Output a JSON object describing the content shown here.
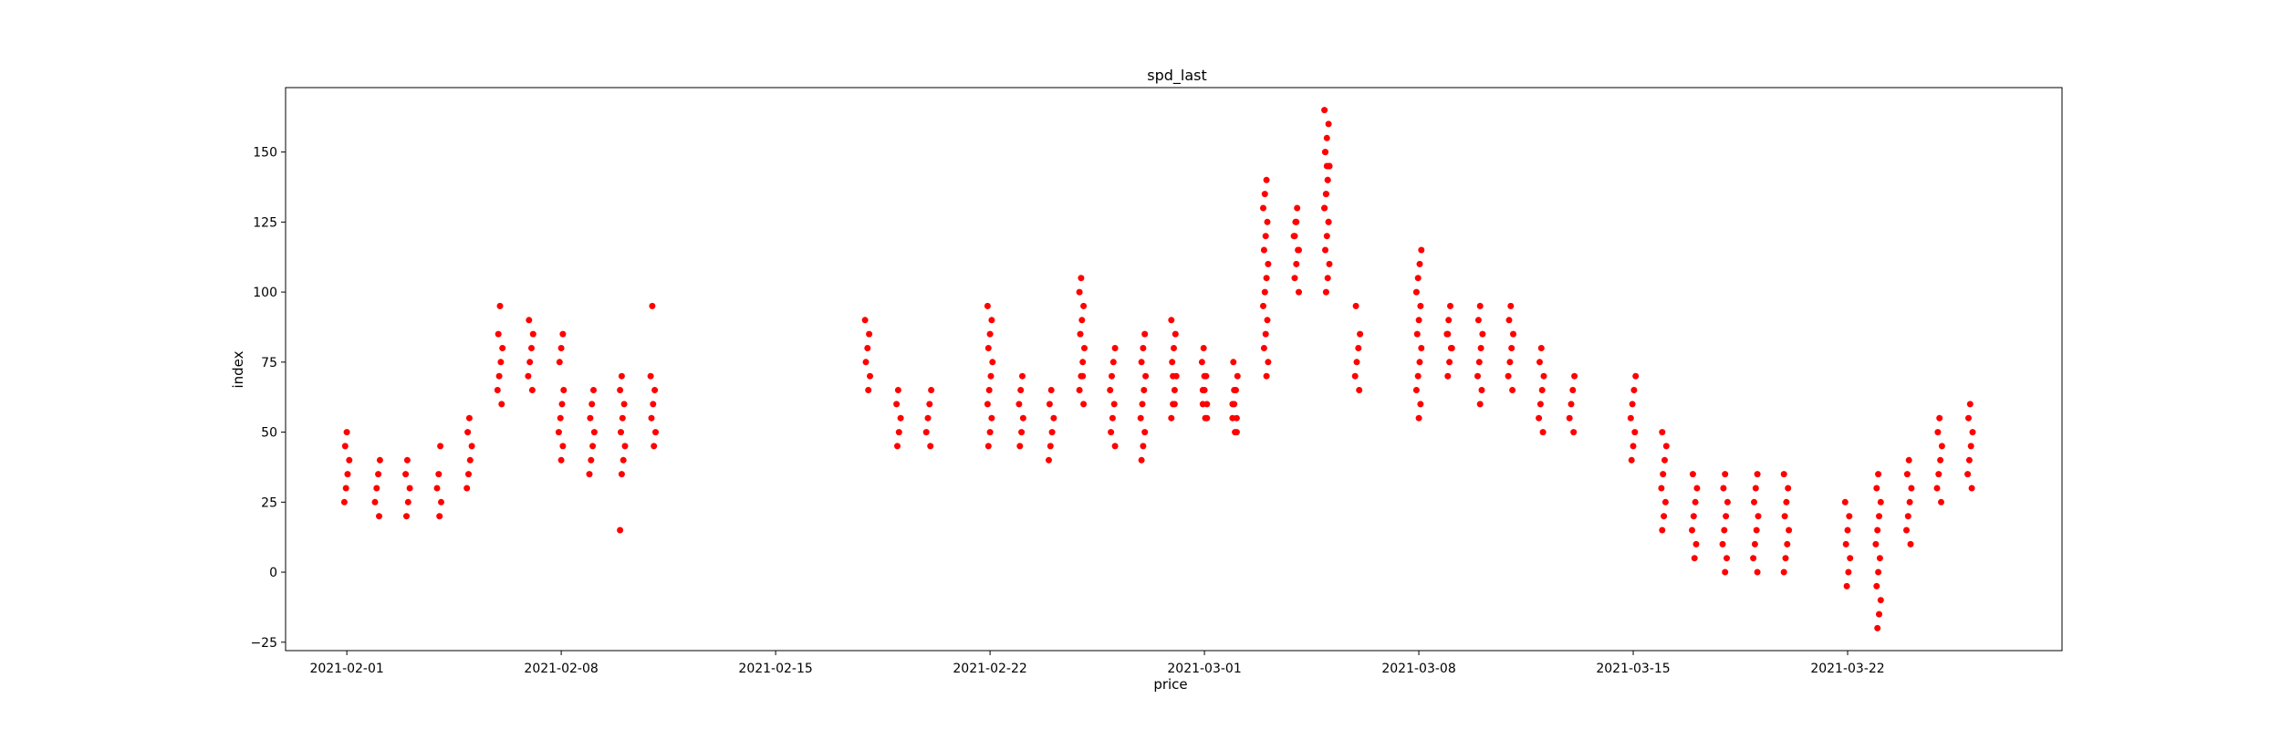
{
  "chart_data": {
    "type": "scatter",
    "title": "spd_last",
    "xlabel": "price",
    "ylabel": "index",
    "x_axis_type": "date",
    "xlim": [
      "2021-01-30",
      "2021-03-29"
    ],
    "ylim": [
      -28,
      173
    ],
    "xticks": [
      "2021-02-01",
      "2021-02-08",
      "2021-02-15",
      "2021-02-22",
      "2021-03-01",
      "2021-03-08",
      "2021-03-15",
      "2021-03-22"
    ],
    "yticks": [
      -25,
      0,
      25,
      50,
      75,
      100,
      125,
      150
    ],
    "grid": false,
    "marker_color": "#ff0000",
    "series": [
      {
        "x": [
          "2021-02-01",
          "2021-02-01",
          "2021-02-01",
          "2021-02-01",
          "2021-02-01",
          "2021-02-01",
          "2021-02-02",
          "2021-02-02",
          "2021-02-02",
          "2021-02-02",
          "2021-02-02",
          "2021-02-03",
          "2021-02-03",
          "2021-02-03",
          "2021-02-03",
          "2021-02-03",
          "2021-02-04",
          "2021-02-04",
          "2021-02-04",
          "2021-02-04",
          "2021-02-04",
          "2021-02-05",
          "2021-02-05",
          "2021-02-05",
          "2021-02-05",
          "2021-02-05",
          "2021-02-05",
          "2021-02-06",
          "2021-02-06",
          "2021-02-06",
          "2021-02-06",
          "2021-02-06",
          "2021-02-06",
          "2021-02-06",
          "2021-02-07",
          "2021-02-07",
          "2021-02-07",
          "2021-02-07",
          "2021-02-07",
          "2021-02-07",
          "2021-02-08",
          "2021-02-08",
          "2021-02-08",
          "2021-02-08",
          "2021-02-08",
          "2021-02-08",
          "2021-02-08",
          "2021-02-08",
          "2021-02-08",
          "2021-02-09",
          "2021-02-09",
          "2021-02-09",
          "2021-02-09",
          "2021-02-09",
          "2021-02-09",
          "2021-02-09",
          "2021-02-10",
          "2021-02-10",
          "2021-02-10",
          "2021-02-10",
          "2021-02-10",
          "2021-02-10",
          "2021-02-10",
          "2021-02-10",
          "2021-02-10",
          "2021-02-11",
          "2021-02-11",
          "2021-02-11",
          "2021-02-11",
          "2021-02-11",
          "2021-02-11",
          "2021-02-11",
          "2021-02-18",
          "2021-02-18",
          "2021-02-18",
          "2021-02-18",
          "2021-02-18",
          "2021-02-18",
          "2021-02-19",
          "2021-02-19",
          "2021-02-19",
          "2021-02-19",
          "2021-02-19",
          "2021-02-20",
          "2021-02-20",
          "2021-02-20",
          "2021-02-20",
          "2021-02-20",
          "2021-02-22",
          "2021-02-22",
          "2021-02-22",
          "2021-02-22",
          "2021-02-22",
          "2021-02-22",
          "2021-02-22",
          "2021-02-22",
          "2021-02-22",
          "2021-02-22",
          "2021-02-22",
          "2021-02-23",
          "2021-02-23",
          "2021-02-23",
          "2021-02-23",
          "2021-02-23",
          "2021-02-23",
          "2021-02-24",
          "2021-02-24",
          "2021-02-24",
          "2021-02-24",
          "2021-02-24",
          "2021-02-24",
          "2021-02-25",
          "2021-02-25",
          "2021-02-25",
          "2021-02-25",
          "2021-02-25",
          "2021-02-25",
          "2021-02-25",
          "2021-02-25",
          "2021-02-25",
          "2021-02-25",
          "2021-02-25",
          "2021-02-26",
          "2021-02-26",
          "2021-02-26",
          "2021-02-26",
          "2021-02-26",
          "2021-02-26",
          "2021-02-26",
          "2021-02-26",
          "2021-02-27",
          "2021-02-27",
          "2021-02-27",
          "2021-02-27",
          "2021-02-27",
          "2021-02-27",
          "2021-02-27",
          "2021-02-27",
          "2021-02-27",
          "2021-02-27",
          "2021-02-28",
          "2021-02-28",
          "2021-02-28",
          "2021-02-28",
          "2021-02-28",
          "2021-02-28",
          "2021-02-28",
          "2021-02-28",
          "2021-02-28",
          "2021-02-28",
          "2021-03-01",
          "2021-03-01",
          "2021-03-01",
          "2021-03-01",
          "2021-03-01",
          "2021-03-01",
          "2021-03-01",
          "2021-03-01",
          "2021-03-01",
          "2021-03-01",
          "2021-03-02",
          "2021-03-02",
          "2021-03-02",
          "2021-03-02",
          "2021-03-02",
          "2021-03-02",
          "2021-03-02",
          "2021-03-02",
          "2021-03-02",
          "2021-03-02",
          "2021-03-03",
          "2021-03-03",
          "2021-03-03",
          "2021-03-03",
          "2021-03-03",
          "2021-03-03",
          "2021-03-03",
          "2021-03-03",
          "2021-03-03",
          "2021-03-03",
          "2021-03-03",
          "2021-03-03",
          "2021-03-03",
          "2021-03-03",
          "2021-03-03",
          "2021-03-04",
          "2021-03-04",
          "2021-03-04",
          "2021-03-04",
          "2021-03-04",
          "2021-03-04",
          "2021-03-04",
          "2021-03-04",
          "2021-03-04",
          "2021-03-04",
          "2021-03-05",
          "2021-03-05",
          "2021-03-05",
          "2021-03-05",
          "2021-03-05",
          "2021-03-05",
          "2021-03-05",
          "2021-03-05",
          "2021-03-05",
          "2021-03-05",
          "2021-03-05",
          "2021-03-05",
          "2021-03-05",
          "2021-03-05",
          "2021-03-05",
          "2021-03-05",
          "2021-03-05",
          "2021-03-05",
          "2021-03-05",
          "2021-03-05",
          "2021-03-05",
          "2021-03-06",
          "2021-03-06",
          "2021-03-06",
          "2021-03-06",
          "2021-03-06",
          "2021-03-06",
          "2021-03-08",
          "2021-03-08",
          "2021-03-08",
          "2021-03-08",
          "2021-03-08",
          "2021-03-08",
          "2021-03-08",
          "2021-03-08",
          "2021-03-08",
          "2021-03-08",
          "2021-03-08",
          "2021-03-08",
          "2021-03-08",
          "2021-03-09",
          "2021-03-09",
          "2021-03-09",
          "2021-03-09",
          "2021-03-09",
          "2021-03-09",
          "2021-03-09",
          "2021-03-09",
          "2021-03-10",
          "2021-03-10",
          "2021-03-10",
          "2021-03-10",
          "2021-03-10",
          "2021-03-10",
          "2021-03-10",
          "2021-03-10",
          "2021-03-11",
          "2021-03-11",
          "2021-03-11",
          "2021-03-11",
          "2021-03-11",
          "2021-03-11",
          "2021-03-11",
          "2021-03-12",
          "2021-03-12",
          "2021-03-12",
          "2021-03-12",
          "2021-03-12",
          "2021-03-12",
          "2021-03-12",
          "2021-03-13",
          "2021-03-13",
          "2021-03-13",
          "2021-03-13",
          "2021-03-13",
          "2021-03-15",
          "2021-03-15",
          "2021-03-15",
          "2021-03-15",
          "2021-03-15",
          "2021-03-15",
          "2021-03-15",
          "2021-03-16",
          "2021-03-16",
          "2021-03-16",
          "2021-03-16",
          "2021-03-16",
          "2021-03-16",
          "2021-03-16",
          "2021-03-16",
          "2021-03-17",
          "2021-03-17",
          "2021-03-17",
          "2021-03-17",
          "2021-03-17",
          "2021-03-17",
          "2021-03-17",
          "2021-03-18",
          "2021-03-18",
          "2021-03-18",
          "2021-03-18",
          "2021-03-18",
          "2021-03-18",
          "2021-03-18",
          "2021-03-18",
          "2021-03-19",
          "2021-03-19",
          "2021-03-19",
          "2021-03-19",
          "2021-03-19",
          "2021-03-19",
          "2021-03-19",
          "2021-03-19",
          "2021-03-20",
          "2021-03-20",
          "2021-03-20",
          "2021-03-20",
          "2021-03-20",
          "2021-03-20",
          "2021-03-20",
          "2021-03-20",
          "2021-03-22",
          "2021-03-22",
          "2021-03-22",
          "2021-03-22",
          "2021-03-22",
          "2021-03-22",
          "2021-03-22",
          "2021-03-23",
          "2021-03-23",
          "2021-03-23",
          "2021-03-23",
          "2021-03-23",
          "2021-03-23",
          "2021-03-23",
          "2021-03-23",
          "2021-03-23",
          "2021-03-23",
          "2021-03-23",
          "2021-03-23",
          "2021-03-24",
          "2021-03-24",
          "2021-03-24",
          "2021-03-24",
          "2021-03-24",
          "2021-03-24",
          "2021-03-24",
          "2021-03-25",
          "2021-03-25",
          "2021-03-25",
          "2021-03-25",
          "2021-03-25",
          "2021-03-25",
          "2021-03-25",
          "2021-03-26",
          "2021-03-26",
          "2021-03-26",
          "2021-03-26",
          "2021-03-26",
          "2021-03-26",
          "2021-03-26"
        ],
        "y": [
          25,
          30,
          35,
          40,
          45,
          50,
          20,
          25,
          30,
          35,
          40,
          20,
          25,
          30,
          35,
          40,
          20,
          25,
          30,
          35,
          45,
          30,
          35,
          40,
          45,
          50,
          55,
          60,
          65,
          70,
          75,
          80,
          85,
          95,
          65,
          70,
          75,
          80,
          85,
          90,
          40,
          45,
          50,
          55,
          60,
          65,
          75,
          80,
          85,
          35,
          40,
          45,
          50,
          55,
          60,
          65,
          15,
          35,
          40,
          45,
          50,
          55,
          60,
          65,
          70,
          45,
          50,
          55,
          60,
          65,
          70,
          95,
          65,
          70,
          75,
          80,
          85,
          90,
          45,
          50,
          55,
          60,
          65,
          45,
          50,
          55,
          60,
          65,
          45,
          50,
          55,
          60,
          65,
          70,
          75,
          80,
          85,
          90,
          95,
          45,
          50,
          55,
          60,
          65,
          70,
          40,
          45,
          50,
          55,
          60,
          65,
          60,
          65,
          70,
          75,
          80,
          85,
          90,
          95,
          100,
          105,
          70,
          45,
          50,
          55,
          60,
          65,
          70,
          75,
          80,
          40,
          45,
          50,
          55,
          60,
          65,
          70,
          75,
          80,
          85,
          55,
          60,
          65,
          70,
          75,
          80,
          85,
          90,
          70,
          60,
          55,
          60,
          65,
          70,
          75,
          80,
          55,
          60,
          65,
          70,
          50,
          55,
          60,
          65,
          70,
          75,
          50,
          55,
          60,
          65,
          70,
          75,
          80,
          85,
          90,
          95,
          100,
          105,
          110,
          115,
          120,
          125,
          130,
          135,
          140,
          100,
          105,
          110,
          115,
          120,
          125,
          130,
          115,
          120,
          125,
          125,
          130,
          135,
          140,
          145,
          150,
          155,
          160,
          165,
          100,
          105,
          110,
          115,
          120,
          125,
          130,
          135,
          140,
          145,
          150,
          145,
          65,
          70,
          75,
          80,
          85,
          95,
          55,
          60,
          65,
          70,
          75,
          80,
          85,
          90,
          95,
          100,
          105,
          110,
          115,
          70,
          75,
          80,
          85,
          90,
          95,
          80,
          85,
          60,
          65,
          70,
          75,
          80,
          85,
          90,
          95,
          65,
          70,
          75,
          80,
          85,
          90,
          95,
          50,
          55,
          60,
          65,
          70,
          75,
          80,
          50,
          55,
          60,
          65,
          70,
          40,
          45,
          50,
          55,
          60,
          65,
          70,
          15,
          20,
          25,
          30,
          35,
          40,
          45,
          50,
          5,
          10,
          15,
          20,
          25,
          30,
          35,
          0,
          5,
          10,
          15,
          20,
          25,
          30,
          35,
          0,
          5,
          10,
          15,
          20,
          25,
          30,
          35,
          0,
          5,
          10,
          15,
          20,
          25,
          30,
          35,
          -5,
          0,
          5,
          10,
          15,
          20,
          25,
          -20,
          -15,
          -10,
          -5,
          0,
          5,
          10,
          15,
          20,
          25,
          30,
          35,
          10,
          15,
          20,
          25,
          30,
          35,
          40,
          25,
          30,
          35,
          40,
          45,
          50,
          55,
          30,
          35,
          40,
          45,
          50,
          55,
          60
        ]
      }
    ]
  }
}
